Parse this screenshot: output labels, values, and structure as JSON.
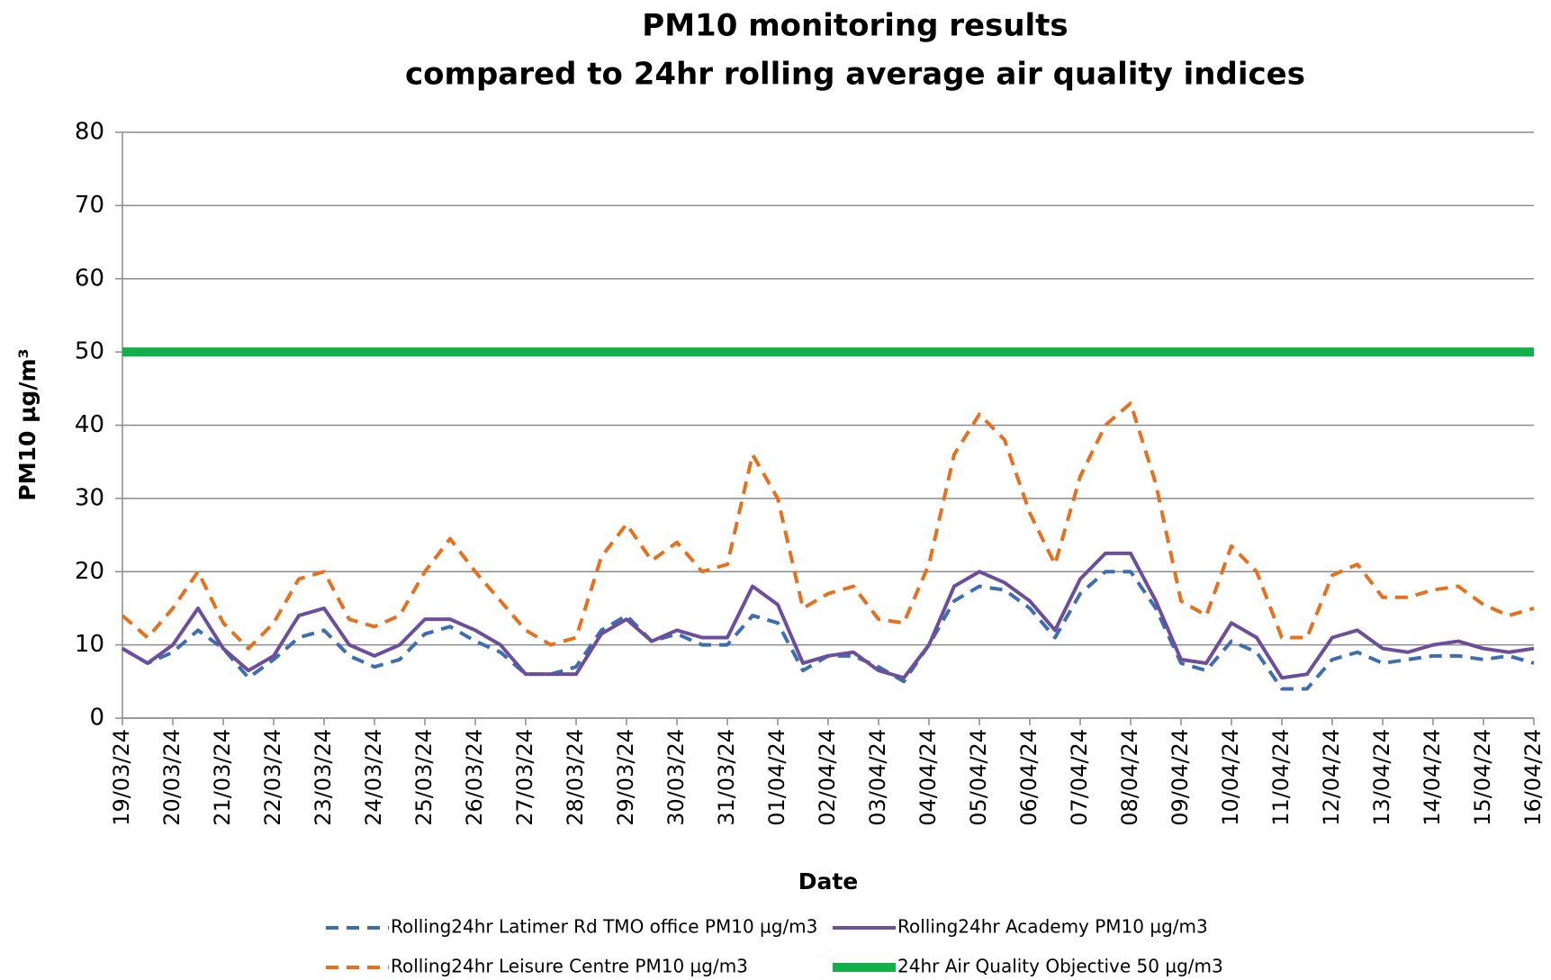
{
  "chart_data": {
    "type": "line",
    "title": [
      "PM10 monitoring results",
      "compared to 24hr rolling average air quality indices"
    ],
    "y_label": "PM10 µg/m³",
    "x_label": "Date",
    "categories": [
      "19/03/24",
      null,
      "20/03/24",
      null,
      "21/03/24",
      null,
      "22/03/24",
      null,
      "23/03/24",
      null,
      "24/03/24",
      null,
      "25/03/24",
      null,
      "26/03/24",
      null,
      "27/03/24",
      null,
      "28/03/24",
      null,
      "29/03/24",
      null,
      "30/03/24",
      null,
      "31/03/24",
      null,
      "01/04/24",
      null,
      "02/04/24",
      null,
      "03/04/24",
      null,
      "04/04/24",
      null,
      "05/04/24",
      null,
      "06/04/24",
      null,
      "07/04/24",
      null,
      "08/04/24",
      null,
      "09/04/24",
      null,
      "10/04/24",
      null,
      "11/04/24",
      null,
      "12/04/24",
      null,
      "13/04/24",
      null,
      "14/04/24",
      null,
      "15/04/24",
      null,
      "16/04/24"
    ],
    "series": [
      {
        "name": "Rolling24hr Latimer Rd TMO office PM10 µg/m3",
        "color": "#3d6eb0",
        "style": "dashed",
        "values": [
          9.5,
          7.5,
          9,
          12,
          9.5,
          5.5,
          8,
          11,
          12,
          8.5,
          7,
          8,
          11.5,
          12.5,
          10.5,
          9,
          6,
          6,
          7,
          12,
          14,
          10.5,
          11.5,
          10,
          10,
          14,
          13,
          6.5,
          8.5,
          8.5,
          7,
          5,
          10,
          16,
          18,
          17.5,
          15,
          11,
          17,
          20,
          20,
          15,
          7.5,
          6.5,
          10.5,
          9,
          4,
          4,
          8,
          9,
          7.5,
          8,
          8.5,
          8.5,
          8,
          8.5,
          7.5
        ]
      },
      {
        "name": "Rolling24hr Academy PM10 µg/m3",
        "color": "#6c4f9a",
        "style": "solid",
        "values": [
          9.5,
          7.5,
          10,
          15,
          9.5,
          6.5,
          8.5,
          14,
          15,
          10,
          8.5,
          10,
          13.5,
          13.5,
          12,
          10,
          6,
          6,
          6,
          11.5,
          13.5,
          10.5,
          12,
          11,
          11,
          18,
          15.5,
          7.5,
          8.5,
          9,
          6.5,
          5.5,
          10,
          18,
          20,
          18.5,
          16,
          12,
          19,
          22.5,
          22.5,
          16,
          8,
          7.5,
          13,
          11,
          5.5,
          6,
          11,
          12,
          9.5,
          9,
          10,
          10.5,
          9.5,
          9,
          9.5
        ]
      },
      {
        "name": "Rolling24hr Leisure Centre PM10 µg/m3",
        "color": "#e5711f",
        "style": "dashed",
        "values": [
          14,
          11,
          15,
          20,
          13,
          9.5,
          13,
          19,
          20,
          13.5,
          12.5,
          14,
          20,
          24.5,
          20,
          16,
          12,
          10,
          11,
          22,
          26.5,
          21.5,
          24,
          20,
          21,
          36,
          30,
          15,
          17,
          18,
          13.5,
          13,
          21,
          36,
          41.5,
          38,
          28,
          21,
          33,
          40,
          43,
          32,
          16,
          14,
          23.5,
          20,
          11,
          11,
          19.5,
          21,
          16.5,
          16.5,
          17.5,
          18,
          15.5,
          14,
          15
        ]
      },
      {
        "name": "24hr Air Quality Objective 50 µg/m3",
        "color": "#12b04a",
        "style": "solid",
        "values": [
          50,
          50,
          50,
          50,
          50,
          50,
          50,
          50,
          50,
          50,
          50,
          50,
          50,
          50,
          50,
          50,
          50,
          50,
          50,
          50,
          50,
          50,
          50,
          50,
          50,
          50,
          50,
          50,
          50,
          50,
          50,
          50,
          50,
          50,
          50,
          50,
          50,
          50,
          50,
          50,
          50,
          50,
          50,
          50,
          50,
          50,
          50,
          50,
          50,
          50,
          50,
          50,
          50,
          50,
          50,
          50,
          50
        ]
      }
    ],
    "ylim": [
      0,
      80
    ],
    "yticks": [
      0,
      10,
      20,
      30,
      40,
      50,
      60,
      70,
      80
    ],
    "grid": true
  }
}
